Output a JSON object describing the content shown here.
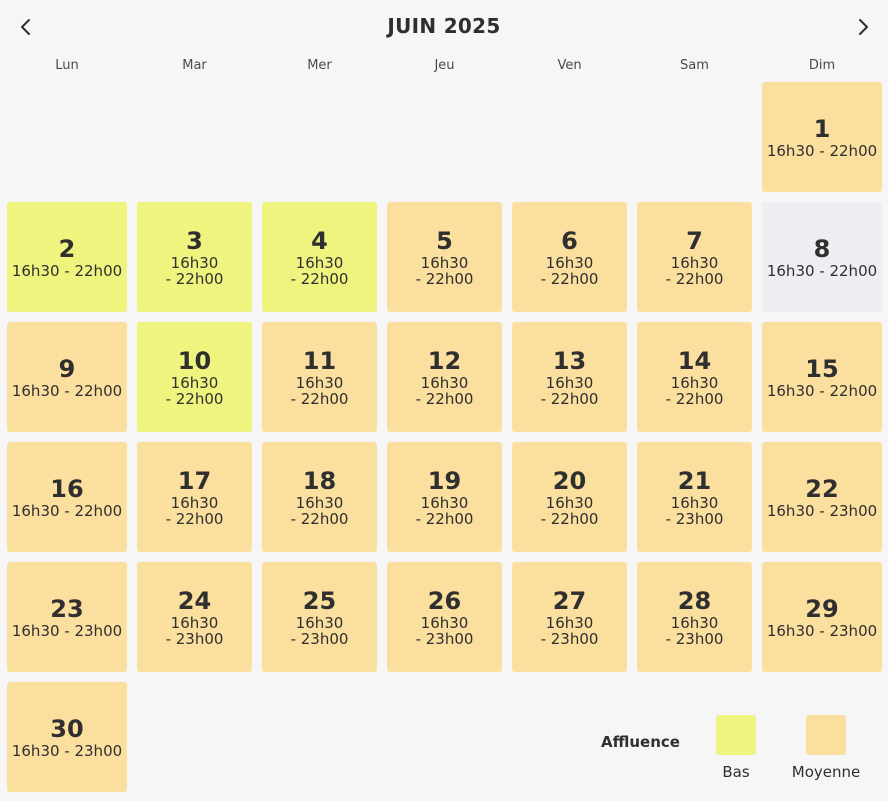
{
  "header": {
    "title": "JUIN 2025",
    "prev_icon": "chevron-left-icon",
    "next_icon": "chevron-right-icon"
  },
  "weekdays": [
    "Lun",
    "Mar",
    "Mer",
    "Jeu",
    "Ven",
    "Sam",
    "Dim"
  ],
  "days": [
    {
      "day": "1",
      "hours": "16h30 - 22h00",
      "level": "Moyenne"
    },
    {
      "day": "2",
      "hours": "16h30 - 22h00",
      "level": "Bas"
    },
    {
      "day": "3",
      "hours": "16h30 - 22h00",
      "level": "Bas"
    },
    {
      "day": "4",
      "hours": "16h30 - 22h00",
      "level": "Bas"
    },
    {
      "day": "5",
      "hours": "16h30 - 22h00",
      "level": "Moyenne"
    },
    {
      "day": "6",
      "hours": "16h30 - 22h00",
      "level": "Moyenne"
    },
    {
      "day": "7",
      "hours": "16h30 - 22h00",
      "level": "Moyenne"
    },
    {
      "day": "8",
      "hours": "16h30 - 22h00",
      "level": "none"
    },
    {
      "day": "9",
      "hours": "16h30 - 22h00",
      "level": "Moyenne"
    },
    {
      "day": "10",
      "hours": "16h30 - 22h00",
      "level": "Bas"
    },
    {
      "day": "11",
      "hours": "16h30 - 22h00",
      "level": "Moyenne"
    },
    {
      "day": "12",
      "hours": "16h30 - 22h00",
      "level": "Moyenne"
    },
    {
      "day": "13",
      "hours": "16h30 - 22h00",
      "level": "Moyenne"
    },
    {
      "day": "14",
      "hours": "16h30 - 22h00",
      "level": "Moyenne"
    },
    {
      "day": "15",
      "hours": "16h30 - 22h00",
      "level": "Moyenne"
    },
    {
      "day": "16",
      "hours": "16h30 - 22h00",
      "level": "Moyenne"
    },
    {
      "day": "17",
      "hours": "16h30 - 22h00",
      "level": "Moyenne"
    },
    {
      "day": "18",
      "hours": "16h30 - 22h00",
      "level": "Moyenne"
    },
    {
      "day": "19",
      "hours": "16h30 - 22h00",
      "level": "Moyenne"
    },
    {
      "day": "20",
      "hours": "16h30 - 22h00",
      "level": "Moyenne"
    },
    {
      "day": "21",
      "hours": "16h30 - 23h00",
      "level": "Moyenne"
    },
    {
      "day": "22",
      "hours": "16h30 - 23h00",
      "level": "Moyenne"
    },
    {
      "day": "23",
      "hours": "16h30 - 23h00",
      "level": "Moyenne"
    },
    {
      "day": "24",
      "hours": "16h30 - 23h00",
      "level": "Moyenne"
    },
    {
      "day": "25",
      "hours": "16h30 - 23h00",
      "level": "Moyenne"
    },
    {
      "day": "26",
      "hours": "16h30 - 23h00",
      "level": "Moyenne"
    },
    {
      "day": "27",
      "hours": "16h30 - 23h00",
      "level": "Moyenne"
    },
    {
      "day": "28",
      "hours": "16h30 - 23h00",
      "level": "Moyenne"
    },
    {
      "day": "29",
      "hours": "16h30 - 23h00",
      "level": "Moyenne"
    },
    {
      "day": "30",
      "hours": "16h30 - 23h00",
      "level": "Moyenne"
    }
  ],
  "legend": {
    "title": "Affluence",
    "items": [
      {
        "label": "Bas",
        "color": "#eef47e"
      },
      {
        "label": "Moyenne",
        "color": "#fbdf9e"
      }
    ]
  },
  "colors": {
    "low": "#eef47e",
    "medium": "#fbdf9e",
    "closed": "#eeedf2",
    "background": "#f6f6f6"
  }
}
